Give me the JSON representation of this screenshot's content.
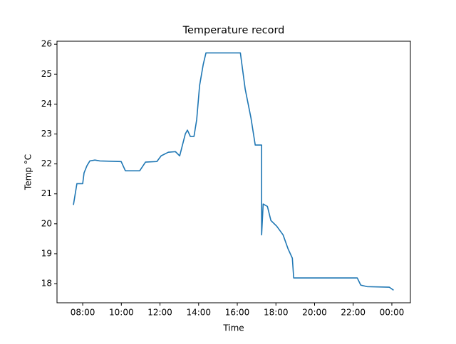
{
  "chart_data": {
    "type": "line",
    "title": "Temperature record",
    "xlabel": "Time",
    "ylabel": "Temp °C",
    "x": [
      7.52,
      7.7,
      8.0,
      8.07,
      8.22,
      8.37,
      8.63,
      8.89,
      9.99,
      10.21,
      10.95,
      11.25,
      11.84,
      12.06,
      12.43,
      12.8,
      13.02,
      13.31,
      13.42,
      13.57,
      13.76,
      13.9,
      14.05,
      14.24,
      14.38,
      15.6,
      16.16,
      16.41,
      16.71,
      16.93,
      17.26,
      17.26,
      17.34,
      17.56,
      17.74,
      18.04,
      18.37,
      18.63,
      18.85,
      18.92,
      22.21,
      22.39,
      22.72,
      23.87,
      24.09
    ],
    "series": [
      {
        "name": "Temperature",
        "color": "#1f77b4",
        "values": [
          20.63,
          21.34,
          21.34,
          21.7,
          21.94,
          22.1,
          22.13,
          22.1,
          22.08,
          21.77,
          21.77,
          22.06,
          22.08,
          22.27,
          22.39,
          22.41,
          22.27,
          23.0,
          23.13,
          22.92,
          22.92,
          23.48,
          24.62,
          25.33,
          25.71,
          25.71,
          25.71,
          24.5,
          23.53,
          22.63,
          22.63,
          19.63,
          20.66,
          20.58,
          20.11,
          19.92,
          19.63,
          19.16,
          18.85,
          18.19,
          18.19,
          17.95,
          17.9,
          17.88,
          17.78
        ]
      }
    ],
    "xlim": [
      6.67,
      24.96
    ],
    "xticks": [
      {
        "value": 8,
        "label": "08:00"
      },
      {
        "value": 10,
        "label": "10:00"
      },
      {
        "value": 12,
        "label": "12:00"
      },
      {
        "value": 14,
        "label": "14:00"
      },
      {
        "value": 16,
        "label": "16:00"
      },
      {
        "value": 18,
        "label": "18:00"
      },
      {
        "value": 20,
        "label": "20:00"
      },
      {
        "value": 22,
        "label": "22:00"
      },
      {
        "value": 24,
        "label": "00:00"
      }
    ],
    "ylim": [
      17.36,
      26.1
    ],
    "yticks": [
      18,
      19,
      20,
      21,
      22,
      23,
      24,
      25,
      26
    ],
    "grid": false
  }
}
